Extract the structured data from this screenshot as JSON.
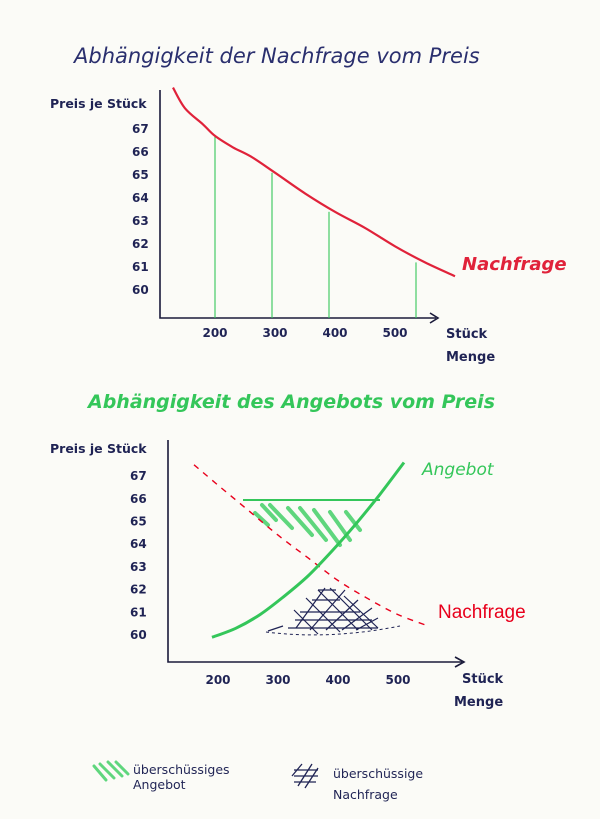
{
  "chart_data": [
    {
      "type": "line",
      "title": "Abhängigkeit der Nachfrage vom Preis",
      "ylabel": "Preis je Stück",
      "xlabel_top": "Stück",
      "xlabel_bottom": "Menge",
      "xticks": [
        "200",
        "300",
        "400",
        "500"
      ],
      "yticks": [
        "60",
        "61",
        "62",
        "63",
        "64",
        "65",
        "66",
        "67"
      ],
      "series": [
        {
          "name": "Nachfrage",
          "color": "#e0223a",
          "x": [
            130,
            150,
            180,
            200,
            230,
            260,
            300,
            350,
            400,
            450,
            500,
            550,
            600
          ],
          "y": [
            68.8,
            67.9,
            67.2,
            66.7,
            66.2,
            65.8,
            65.1,
            64.2,
            63.4,
            62.7,
            61.9,
            61.2,
            60.6
          ]
        }
      ],
      "guide_lines": [
        {
          "x": 200,
          "y": 66.7
        },
        {
          "x": 295,
          "y": 65.1
        },
        {
          "x": 390,
          "y": 63.4
        },
        {
          "x": 535,
          "y": 61.2
        }
      ]
    },
    {
      "type": "line",
      "title": "Abhängigkeit des Angebots vom Preis",
      "ylabel": "Preis je Stück",
      "xlabel_top": "Stück",
      "xlabel_bottom": "Menge",
      "xticks": [
        "200",
        "300",
        "400",
        "500"
      ],
      "yticks": [
        "60",
        "61",
        "62",
        "63",
        "64",
        "65",
        "66",
        "67"
      ],
      "series": [
        {
          "name": "Angebot",
          "color": "#34c65a",
          "x": [
            190,
            230,
            270,
            310,
            350,
            390,
            430,
            470,
            510
          ],
          "y": [
            59.9,
            60.3,
            60.9,
            61.7,
            62.6,
            63.7,
            64.9,
            66.2,
            67.6
          ]
        },
        {
          "name": "Nachfrage",
          "color": "#e8001c",
          "dashed": true,
          "x": [
            160,
            200,
            250,
            300,
            350,
            400,
            450,
            500,
            550
          ],
          "y": [
            67.5,
            66.6,
            65.5,
            64.4,
            63.4,
            62.4,
            61.6,
            60.9,
            60.4
          ]
        }
      ]
    }
  ],
  "legend": [
    {
      "label_line1": "überschüssiges",
      "label_line2": "Angebot"
    },
    {
      "label_line1": "überschüssige",
      "label_line2": "Nachfrage"
    }
  ]
}
